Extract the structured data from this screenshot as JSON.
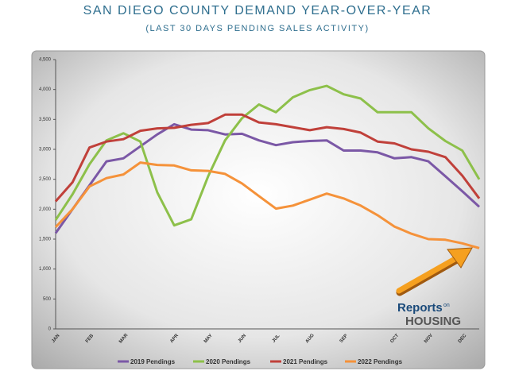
{
  "chart_data": {
    "type": "line",
    "title": "SAN DIEGO COUNTY DEMAND YEAR-OVER-YEAR",
    "subtitle": "(LAST 30 DAYS PENDING SALES ACTIVITY)",
    "categories": [
      "JAN",
      null,
      "FEB",
      null,
      "MAR",
      null,
      null,
      "APR",
      null,
      "MAY",
      null,
      "JUN",
      null,
      "JUL",
      null,
      "AUG",
      null,
      "SEP",
      null,
      null,
      "OCT",
      null,
      "NOV",
      null,
      "DEC",
      null
    ],
    "series": [
      {
        "name": "2019 Pendings",
        "color": "#7b58a6",
        "values": [
          1600,
          2000,
          2400,
          2800,
          2850,
          3050,
          3250,
          3420,
          3330,
          3320,
          3250,
          3260,
          3150,
          3070,
          3120,
          3140,
          3150,
          2980,
          2980,
          2950,
          2850,
          2870,
          2800,
          2550,
          2300,
          2040
        ]
      },
      {
        "name": "2020 Pendings",
        "color": "#8dc04a",
        "values": [
          1820,
          2250,
          2750,
          3150,
          3270,
          3130,
          2280,
          1730,
          1830,
          2550,
          3150,
          3520,
          3750,
          3620,
          3870,
          3990,
          4060,
          3920,
          3850,
          3620,
          3620,
          3620,
          3350,
          3140,
          2980,
          2500
        ]
      },
      {
        "name": "2021 Pendings",
        "color": "#c0403a",
        "values": [
          2130,
          2450,
          3030,
          3130,
          3170,
          3310,
          3350,
          3360,
          3410,
          3440,
          3580,
          3580,
          3450,
          3420,
          3370,
          3320,
          3370,
          3340,
          3280,
          3130,
          3100,
          3000,
          2960,
          2870,
          2560,
          2180
        ]
      },
      {
        "name": "2022 Pendings",
        "color": "#f5923a",
        "values": [
          1700,
          2000,
          2380,
          2520,
          2580,
          2780,
          2740,
          2730,
          2650,
          2640,
          2590,
          2430,
          2220,
          2010,
          2060,
          2160,
          2260,
          2180,
          2060,
          1900,
          1710,
          1590,
          1500,
          1490,
          1430,
          1350
        ]
      }
    ],
    "ylim": [
      0,
      4500
    ],
    "yticks": [
      0,
      500,
      {
        "value": 1000,
        "label": "1,000"
      },
      {
        "value": 1500,
        "label": "1,500"
      },
      {
        "value": 2000,
        "label": "2,000"
      },
      {
        "value": 2500,
        "label": "2,500"
      },
      {
        "value": 3000,
        "label": "3,000"
      },
      {
        "value": 3500,
        "label": "3,500"
      },
      {
        "value": 4000,
        "label": "4,000"
      },
      {
        "value": 4500,
        "label": "4,500"
      }
    ],
    "logo": {
      "brand": "Reports",
      "small": "on",
      "name": "HOUSING"
    }
  }
}
